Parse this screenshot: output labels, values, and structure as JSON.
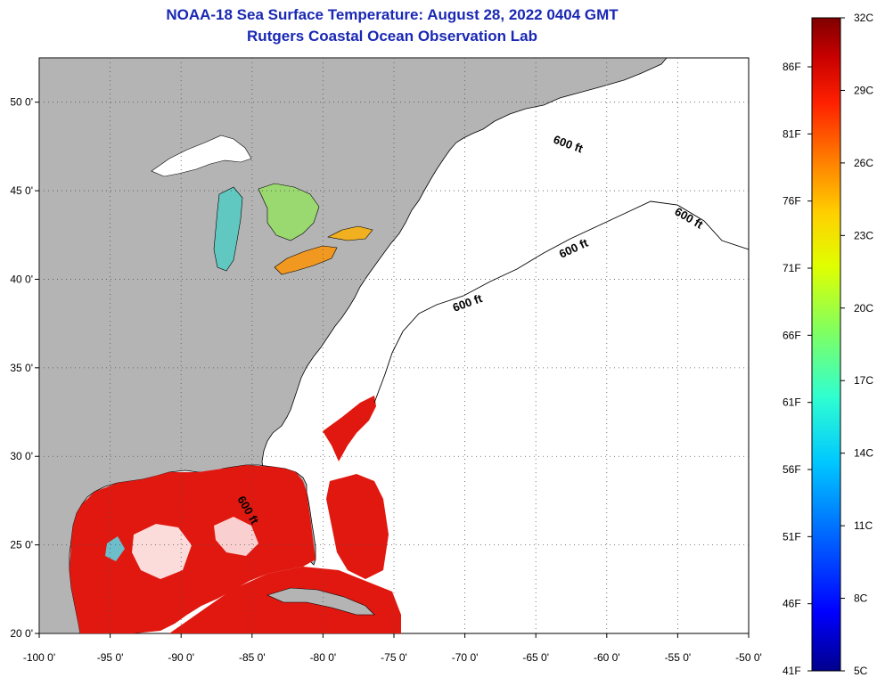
{
  "title": {
    "line1": "NOAA-18 Sea Surface Temperature:  August 28, 2022 0404 GMT",
    "line2": "Rutgers Coastal Ocean Observation Lab"
  },
  "map": {
    "lon_range": [
      -100,
      -50
    ],
    "lat_range": [
      20,
      52.5
    ],
    "x_ticks": [
      "-100 0'",
      "-95 0'",
      "-90 0'",
      "-85 0'",
      "-80 0'",
      "-75 0'",
      "-70 0'",
      "-65 0'",
      "-60 0'",
      "-55 0'",
      "-50 0'"
    ],
    "y_ticks": [
      "50 0'",
      "45 0'",
      "40 0'",
      "35 0'",
      "30 0'",
      "25 0'",
      "20 0'"
    ],
    "contour_label": "600 ft",
    "colors": {
      "land": "#b4b4b4",
      "ocean_nodata": "#ffffff",
      "warm_sst": "#e01810",
      "grid": "#555555"
    }
  },
  "colorbar": {
    "celsius": [
      "32C",
      "29C",
      "26C",
      "23C",
      "20C",
      "17C",
      "14C",
      "11C",
      "8C",
      "5C"
    ],
    "fahrenheit": [
      "86F",
      "81F",
      "76F",
      "71F",
      "66F",
      "61F",
      "56F",
      "51F",
      "46F",
      "41F"
    ],
    "colors": [
      "#00008c",
      "#0000ff",
      "#0060ff",
      "#00c8ff",
      "#30ffd0",
      "#80ff60",
      "#e0ff00",
      "#ffd000",
      "#ff8000",
      "#ff2000",
      "#c80000",
      "#800000"
    ]
  }
}
